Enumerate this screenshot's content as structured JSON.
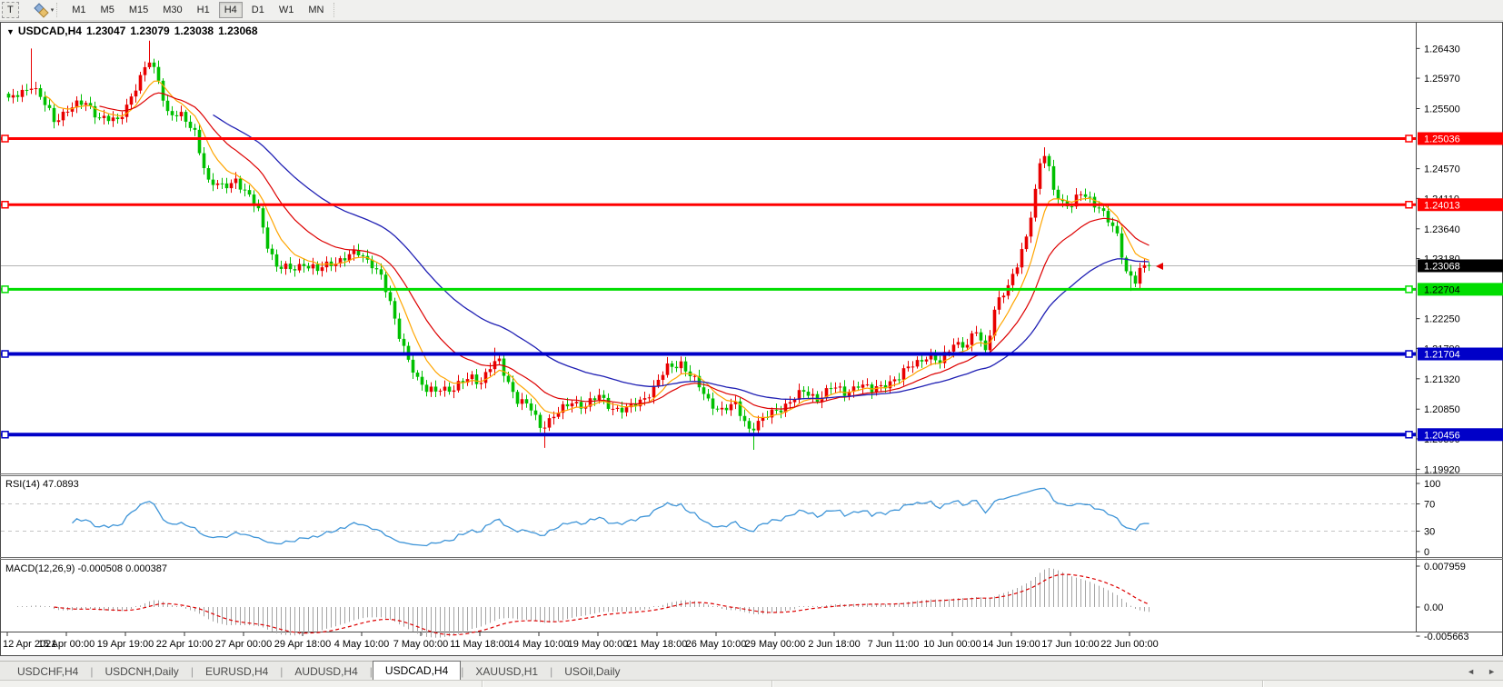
{
  "icons": {
    "dropdown": "▼",
    "caret_down": "▾",
    "scroll_left": "◄",
    "scroll_right": "►"
  },
  "toolbar": {
    "text_tool_label": "T",
    "periods": [
      "M1",
      "M5",
      "M15",
      "M30",
      "H1",
      "H4",
      "D1",
      "W1",
      "MN"
    ],
    "active_period": "H4"
  },
  "chart": {
    "symbol_period": "USDCAD,H4",
    "open": "1.23047",
    "high": "1.23079",
    "low": "1.23038",
    "close": "1.23068"
  },
  "price_axis": {
    "ticks": [
      "1.26430",
      "1.25970",
      "1.25500",
      "1.24570",
      "1.24110",
      "1.23640",
      "1.23180",
      "1.22250",
      "1.21790",
      "1.21320",
      "1.20850",
      "1.20390",
      "1.19920"
    ],
    "price_tags": [
      {
        "value": "1.25036",
        "price": 1.25036,
        "bg": "#ff0000",
        "fg": "#ffffff"
      },
      {
        "value": "1.24013",
        "price": 1.24013,
        "bg": "#ff0000",
        "fg": "#ffffff"
      },
      {
        "value": "1.22704",
        "price": 1.22704,
        "bg": "#00dd00",
        "fg": "#000000"
      },
      {
        "value": "1.21704",
        "price": 1.21704,
        "bg": "#0000c8",
        "fg": "#ffffff"
      },
      {
        "value": "1.20456",
        "price": 1.20456,
        "bg": "#0000c8",
        "fg": "#ffffff"
      },
      {
        "value": "1.23068",
        "price": 1.23068,
        "bg": "#000000",
        "fg": "#ffffff"
      }
    ]
  },
  "time_axis": {
    "labels": [
      "12 Apr 2021",
      "15 Apr 00:00",
      "19 Apr 19:00",
      "22 Apr 10:00",
      "27 Apr 00:00",
      "29 Apr 18:00",
      "4 May 10:00",
      "7 May 00:00",
      "11 May 18:00",
      "14 May 10:00",
      "19 May 00:00",
      "21 May 18:00",
      "26 May 10:00",
      "29 May 00:00",
      "2 Jun 18:00",
      "7 Jun 11:00",
      "10 Jun 00:00",
      "14 Jun 19:00",
      "17 Jun 10:00",
      "22 Jun 00:00"
    ]
  },
  "rsi_panel": {
    "label": "RSI(14) 47.0893",
    "value": 47.0893,
    "ticks": [
      "100",
      "70",
      "30",
      "0"
    ],
    "levels": [
      70,
      30
    ],
    "line_color": "#3f95d8"
  },
  "macd_panel": {
    "label": "MACD(12,26,9) -0.000508 0.000387",
    "main_value": -0.000508,
    "signal_value": 0.000387,
    "ticks": [
      "0.007959",
      "0.00",
      "-0.005663"
    ],
    "histogram_color": "#a4a4a4",
    "signal_color": "#dd0000"
  },
  "tabs": {
    "items": [
      {
        "label": "USDCHF,H4",
        "active": false
      },
      {
        "label": "USDCNH,Daily",
        "active": false
      },
      {
        "label": "EURUSD,H4",
        "active": false
      },
      {
        "label": "AUDUSD,H4",
        "active": false
      },
      {
        "label": "USDCAD,H4",
        "active": true
      },
      {
        "label": "XAUUSD,H1",
        "active": false
      },
      {
        "label": "USOil,Daily",
        "active": false
      }
    ]
  },
  "chart_data": {
    "type": "candlestick",
    "title": "USDCAD,H4",
    "ohlc_current": {
      "open": 1.23047,
      "high": 1.23079,
      "low": 1.23038,
      "close": 1.23068
    },
    "visible_price_range": [
      1.1992,
      1.2662
    ],
    "bars": 252,
    "last_close": 1.23068,
    "up_color": "#e80000",
    "down_color": "#00c000",
    "wick_up_color": "#e80000",
    "wick_down_color": "#00c000",
    "current_price_line": {
      "price": 1.23068,
      "color": "#b4b4b4"
    },
    "hlines": [
      {
        "price": 1.25036,
        "color": "#ff0000",
        "width": 3
      },
      {
        "price": 1.24013,
        "color": "#ff0000",
        "width": 3
      },
      {
        "price": 1.22704,
        "color": "#00dd00",
        "width": 3
      },
      {
        "price": 1.21704,
        "color": "#0000c8",
        "width": 4
      },
      {
        "price": 1.20456,
        "color": "#0000c8",
        "width": 4
      }
    ],
    "moving_averages": [
      {
        "period": 8,
        "color": "#ffa500",
        "width": 1.2
      },
      {
        "period": 20,
        "color": "#dd0000",
        "width": 1.2
      },
      {
        "period": 45,
        "color": "#2020b4",
        "width": 1.3
      }
    ],
    "close_anchors": [
      [
        0,
        1.256
      ],
      [
        2,
        1.2572
      ],
      [
        5,
        1.2588
      ],
      [
        8,
        1.2555
      ],
      [
        10,
        1.2532
      ],
      [
        13,
        1.255
      ],
      [
        17,
        1.2558
      ],
      [
        20,
        1.2538
      ],
      [
        24,
        1.2528
      ],
      [
        28,
        1.2585
      ],
      [
        31,
        1.2622
      ],
      [
        33,
        1.2595
      ],
      [
        35,
        1.2545
      ],
      [
        38,
        1.2536
      ],
      [
        41,
        1.2515
      ],
      [
        44,
        1.2435
      ],
      [
        47,
        1.2428
      ],
      [
        50,
        1.2442
      ],
      [
        52,
        1.242
      ],
      [
        55,
        1.2392
      ],
      [
        57,
        1.2342
      ],
      [
        59,
        1.2305
      ],
      [
        62,
        1.23
      ],
      [
        65,
        1.2312
      ],
      [
        68,
        1.2298
      ],
      [
        71,
        1.2312
      ],
      [
        74,
        1.232
      ],
      [
        77,
        1.2325
      ],
      [
        80,
        1.2312
      ],
      [
        82,
        1.229
      ],
      [
        84,
        1.2245
      ],
      [
        86,
        1.22
      ],
      [
        88,
        1.2165
      ],
      [
        90,
        1.2128
      ],
      [
        92,
        1.2112
      ],
      [
        95,
        1.212
      ],
      [
        98,
        1.2112
      ],
      [
        100,
        1.2128
      ],
      [
        102,
        1.2138
      ],
      [
        104,
        1.2126
      ],
      [
        106,
        1.2148
      ],
      [
        108,
        1.216
      ],
      [
        110,
        1.2128
      ],
      [
        112,
        1.2098
      ],
      [
        115,
        1.2085
      ],
      [
        117,
        1.206
      ],
      [
        119,
        1.2068
      ],
      [
        122,
        1.2084
      ],
      [
        124,
        1.2098
      ],
      [
        127,
        1.209
      ],
      [
        130,
        1.2104
      ],
      [
        133,
        1.2088
      ],
      [
        136,
        1.2082
      ],
      [
        139,
        1.2098
      ],
      [
        142,
        1.2118
      ],
      [
        145,
        1.2148
      ],
      [
        148,
        1.2158
      ],
      [
        151,
        1.2128
      ],
      [
        154,
        1.2098
      ],
      [
        157,
        1.2084
      ],
      [
        160,
        1.209
      ],
      [
        163,
        1.2056
      ],
      [
        166,
        1.2068
      ],
      [
        169,
        1.2083
      ],
      [
        172,
        1.2098
      ],
      [
        175,
        1.211
      ],
      [
        178,
        1.2103
      ],
      [
        181,
        1.2118
      ],
      [
        184,
        1.211
      ],
      [
        187,
        1.2125
      ],
      [
        190,
        1.2112
      ],
      [
        193,
        1.2126
      ],
      [
        196,
        1.2133
      ],
      [
        199,
        1.2155
      ],
      [
        202,
        1.2168
      ],
      [
        205,
        1.2155
      ],
      [
        208,
        1.219
      ],
      [
        211,
        1.2183
      ],
      [
        213,
        1.2205
      ],
      [
        215,
        1.2175
      ],
      [
        217,
        1.224
      ],
      [
        218,
        1.2255
      ],
      [
        220,
        1.227
      ],
      [
        222,
        1.231
      ],
      [
        224,
        1.2355
      ],
      [
        226,
        1.242
      ],
      [
        227,
        1.2462
      ],
      [
        228,
        1.2477
      ],
      [
        229,
        1.2455
      ],
      [
        230,
        1.2428
      ],
      [
        232,
        1.2405
      ],
      [
        234,
        1.2398
      ],
      [
        236,
        1.2418
      ],
      [
        238,
        1.2412
      ],
      [
        240,
        1.2398
      ],
      [
        242,
        1.2375
      ],
      [
        244,
        1.2352
      ],
      [
        246,
        1.23
      ],
      [
        248,
        1.2285
      ],
      [
        249,
        1.2298
      ],
      [
        251,
        1.23068
      ]
    ],
    "spikes": [
      {
        "i": 5,
        "high": 1.2643
      },
      {
        "i": 31,
        "high": 1.2655
      },
      {
        "i": 107,
        "high": 1.218
      },
      {
        "i": 118,
        "low": 1.2025
      },
      {
        "i": 164,
        "low": 1.2022
      },
      {
        "i": 228,
        "high": 1.249
      },
      {
        "i": 247,
        "low": 1.2268
      }
    ]
  }
}
